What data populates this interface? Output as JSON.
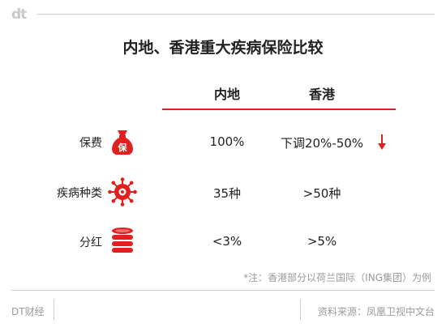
{
  "brand": {
    "logo": "dt"
  },
  "title": "内地、香港重大疾病保险比较",
  "columns": [
    "内地",
    "香港"
  ],
  "rows": [
    {
      "label": "保费",
      "icon": "money-bag-icon",
      "icon_text": "保",
      "mainland": "100%",
      "hongkong": "下调20%-50%",
      "trend": "down"
    },
    {
      "label": "疾病种类",
      "icon": "virus-icon",
      "mainland": "35种",
      "hongkong": ">50种"
    },
    {
      "label": "分红",
      "icon": "coin-stack-icon",
      "mainland": "<3%",
      "hongkong": ">5%"
    }
  ],
  "note": "*注：香港部分以荷兰国际（ING集团）为例",
  "footer": {
    "left": "DT财经",
    "right": "资料来源：凤凰卫视中文台"
  },
  "colors": {
    "accent": "#e0201e",
    "muted": "#9a9a9a"
  }
}
